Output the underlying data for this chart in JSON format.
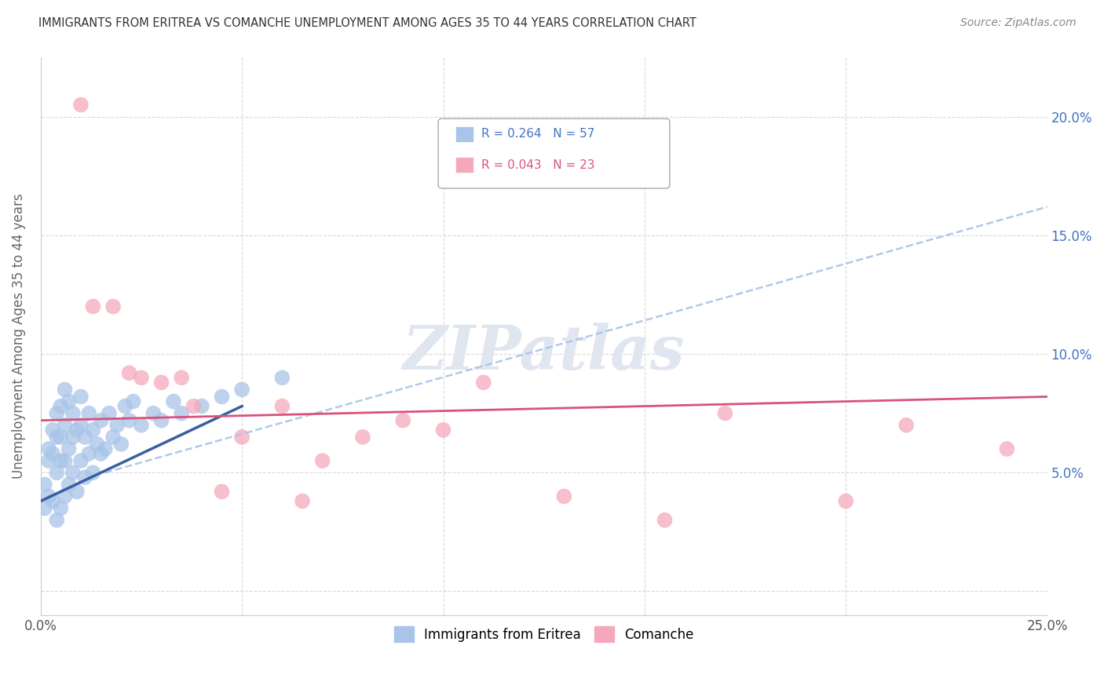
{
  "title": "IMMIGRANTS FROM ERITREA VS COMANCHE UNEMPLOYMENT AMONG AGES 35 TO 44 YEARS CORRELATION CHART",
  "source": "Source: ZipAtlas.com",
  "ylabel": "Unemployment Among Ages 35 to 44 years",
  "xlim": [
    0.0,
    0.25
  ],
  "ylim": [
    -0.01,
    0.225
  ],
  "legend_labels": [
    "Immigrants from Eritrea",
    "Comanche"
  ],
  "r_eritrea": 0.264,
  "n_eritrea": 57,
  "r_comanche": 0.043,
  "n_comanche": 23,
  "blue_color": "#a8c4e8",
  "pink_color": "#f5a8bc",
  "line_blue": "#3a5fa0",
  "line_pink": "#d9527a",
  "watermark": "ZIPatlas",
  "eritrea_x": [
    0.001,
    0.001,
    0.002,
    0.002,
    0.002,
    0.003,
    0.003,
    0.003,
    0.004,
    0.004,
    0.004,
    0.004,
    0.005,
    0.005,
    0.005,
    0.005,
    0.006,
    0.006,
    0.006,
    0.006,
    0.007,
    0.007,
    0.007,
    0.008,
    0.008,
    0.008,
    0.009,
    0.009,
    0.01,
    0.01,
    0.01,
    0.011,
    0.011,
    0.012,
    0.012,
    0.013,
    0.013,
    0.014,
    0.015,
    0.015,
    0.016,
    0.017,
    0.018,
    0.019,
    0.02,
    0.021,
    0.022,
    0.023,
    0.025,
    0.028,
    0.03,
    0.033,
    0.035,
    0.04,
    0.045,
    0.05,
    0.06
  ],
  "eritrea_y": [
    0.045,
    0.035,
    0.055,
    0.04,
    0.06,
    0.038,
    0.058,
    0.068,
    0.03,
    0.05,
    0.065,
    0.075,
    0.035,
    0.055,
    0.065,
    0.078,
    0.04,
    0.055,
    0.07,
    0.085,
    0.045,
    0.06,
    0.08,
    0.05,
    0.065,
    0.075,
    0.042,
    0.068,
    0.055,
    0.07,
    0.082,
    0.048,
    0.065,
    0.058,
    0.075,
    0.05,
    0.068,
    0.062,
    0.058,
    0.072,
    0.06,
    0.075,
    0.065,
    0.07,
    0.062,
    0.078,
    0.072,
    0.08,
    0.07,
    0.075,
    0.072,
    0.08,
    0.075,
    0.078,
    0.082,
    0.085,
    0.09
  ],
  "comanche_x": [
    0.01,
    0.013,
    0.018,
    0.022,
    0.025,
    0.03,
    0.035,
    0.038,
    0.045,
    0.05,
    0.06,
    0.065,
    0.07,
    0.08,
    0.09,
    0.1,
    0.11,
    0.13,
    0.155,
    0.17,
    0.2,
    0.215,
    0.24
  ],
  "comanche_y": [
    0.205,
    0.12,
    0.12,
    0.092,
    0.09,
    0.088,
    0.09,
    0.078,
    0.042,
    0.065,
    0.078,
    0.038,
    0.055,
    0.065,
    0.072,
    0.068,
    0.088,
    0.04,
    0.03,
    0.075,
    0.038,
    0.07,
    0.06
  ],
  "blue_line_x": [
    0.0,
    0.05
  ],
  "blue_line_y": [
    0.038,
    0.078
  ],
  "dash_line_x": [
    0.016,
    0.25
  ],
  "dash_line_y": [
    0.05,
    0.162
  ],
  "pink_line_x": [
    0.0,
    0.25
  ],
  "pink_line_y": [
    0.072,
    0.082
  ]
}
